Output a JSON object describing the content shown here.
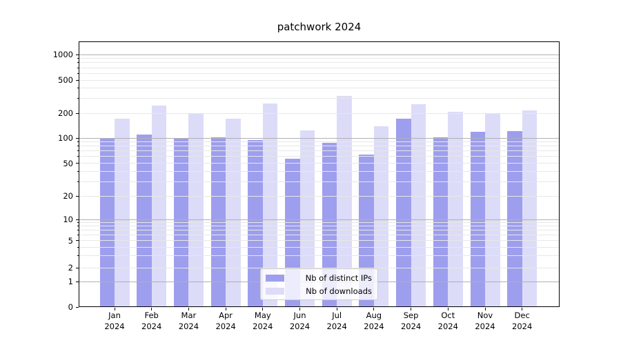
{
  "title": "patchwork 2024",
  "legend": {
    "items": [
      {
        "label": "Nb of distinct IPs",
        "color": "#9e9eee"
      },
      {
        "label": "Nb of downloads",
        "color": "#dcdcf8"
      }
    ]
  },
  "x_axis": {
    "months": [
      "Jan",
      "Feb",
      "Mar",
      "Apr",
      "May",
      "Jun",
      "Jul",
      "Aug",
      "Sep",
      "Oct",
      "Nov",
      "Dec"
    ],
    "year": "2024"
  },
  "y_axis": {
    "scale": "symlog",
    "ticks": [
      0,
      1,
      2,
      5,
      10,
      20,
      50,
      100,
      200,
      500,
      1000
    ]
  },
  "colors": {
    "grid_major": "#b0b0b0",
    "grid_minor": "#e7e7e7",
    "spine": "#000000",
    "legend_border": "#cccccc",
    "legend_bg": "rgba(255,255,255,0.8)"
  },
  "chart_data": {
    "type": "bar",
    "title": "patchwork 2024",
    "categories": [
      "Jan 2024",
      "Feb 2024",
      "Mar 2024",
      "Apr 2024",
      "May 2024",
      "Jun 2024",
      "Jul 2024",
      "Aug 2024",
      "Sep 2024",
      "Oct 2024",
      "Nov 2024",
      "Dec 2024"
    ],
    "series": [
      {
        "name": "Nb of distinct IPs",
        "color": "#9e9eee",
        "values": [
          100,
          110,
          100,
          102,
          95,
          57,
          87,
          64,
          170,
          103,
          120,
          122
        ]
      },
      {
        "name": "Nb of downloads",
        "color": "#dcdcf8",
        "values": [
          170,
          248,
          200,
          170,
          260,
          123,
          325,
          140,
          257,
          207,
          197,
          218
        ]
      }
    ],
    "yscale": "symlog",
    "yticks": [
      0,
      1,
      2,
      5,
      10,
      20,
      50,
      100,
      200,
      500,
      1000
    ],
    "ylim": [
      0,
      1400
    ],
    "grid": true,
    "grid_which": "both",
    "legend_position": "lower center"
  }
}
